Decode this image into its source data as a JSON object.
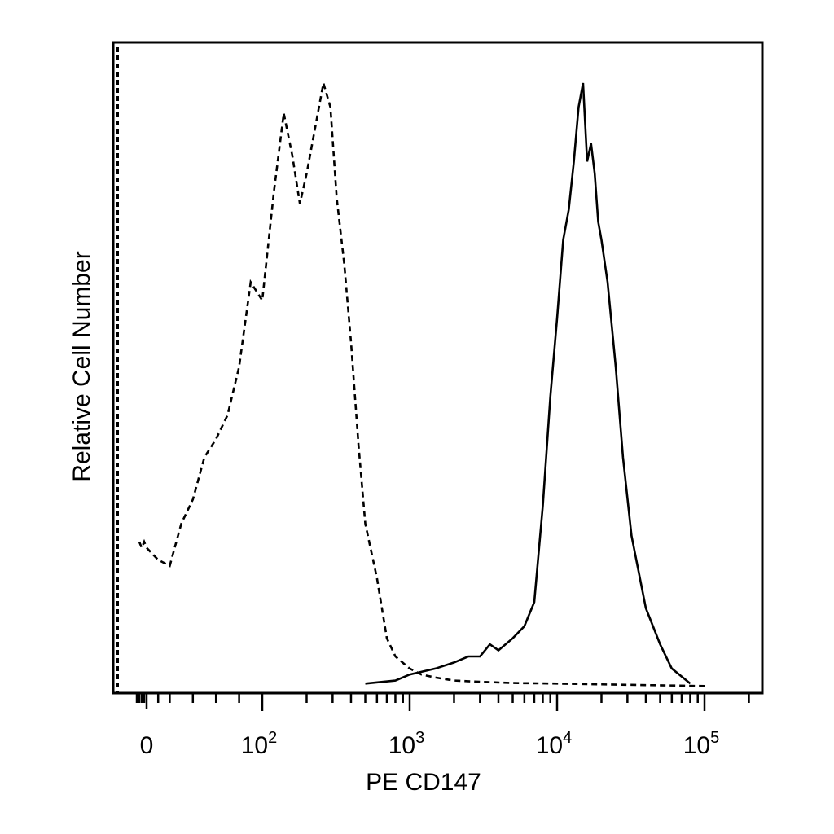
{
  "chart_data": {
    "type": "line",
    "title": "",
    "xlabel": "PE CD147",
    "ylabel": "Relative Cell Number",
    "x_scale": "biexponential",
    "xlim": [
      -50,
      200000
    ],
    "ylim": [
      0,
      1
    ],
    "x_tick_labels": [
      {
        "value": 0,
        "base": "0",
        "exp": ""
      },
      {
        "value": 100,
        "base": "10",
        "exp": "2"
      },
      {
        "value": 1000,
        "base": "10",
        "exp": "3"
      },
      {
        "value": 10000,
        "base": "10",
        "exp": "4"
      },
      {
        "value": 100000,
        "base": "10",
        "exp": "5"
      }
    ],
    "grid": false,
    "legend": "none",
    "series": [
      {
        "style": "dashed",
        "color": "#000000",
        "x": [
          -30,
          -20,
          -10,
          0,
          10,
          20,
          30,
          40,
          50,
          60,
          70,
          80,
          90,
          100,
          120,
          140,
          160,
          180,
          200,
          230,
          260,
          290,
          320,
          360,
          400,
          450,
          500,
          600,
          700,
          800,
          1000,
          1200,
          1500,
          2000,
          3000,
          5000,
          10000,
          30000,
          100000
        ],
        "y": [
          0.24,
          0.23,
          0.24,
          0.23,
          0.21,
          0.2,
          0.27,
          0.31,
          0.38,
          0.41,
          0.45,
          0.53,
          0.67,
          0.64,
          0.82,
          0.95,
          0.88,
          0.8,
          0.85,
          0.93,
          1.0,
          0.96,
          0.81,
          0.7,
          0.57,
          0.4,
          0.27,
          0.18,
          0.08,
          0.05,
          0.03,
          0.02,
          0.015,
          0.01,
          0.008,
          0.006,
          0.005,
          0.003,
          0.001
        ]
      },
      {
        "style": "solid",
        "color": "#000000",
        "x": [
          500,
          800,
          1000,
          1500,
          2000,
          2500,
          3000,
          3500,
          4000,
          5000,
          6000,
          7000,
          8000,
          9000,
          10000,
          11000,
          12000,
          13000,
          14000,
          15000,
          16000,
          17000,
          18000,
          19000,
          20000,
          22000,
          25000,
          28000,
          32000,
          40000,
          50000,
          60000,
          80000
        ],
        "y": [
          0.005,
          0.01,
          0.02,
          0.03,
          0.04,
          0.05,
          0.05,
          0.07,
          0.06,
          0.08,
          0.1,
          0.14,
          0.3,
          0.48,
          0.61,
          0.74,
          0.79,
          0.87,
          0.96,
          1.0,
          0.87,
          0.9,
          0.85,
          0.77,
          0.74,
          0.67,
          0.53,
          0.38,
          0.25,
          0.13,
          0.07,
          0.03,
          0.005
        ]
      }
    ]
  }
}
